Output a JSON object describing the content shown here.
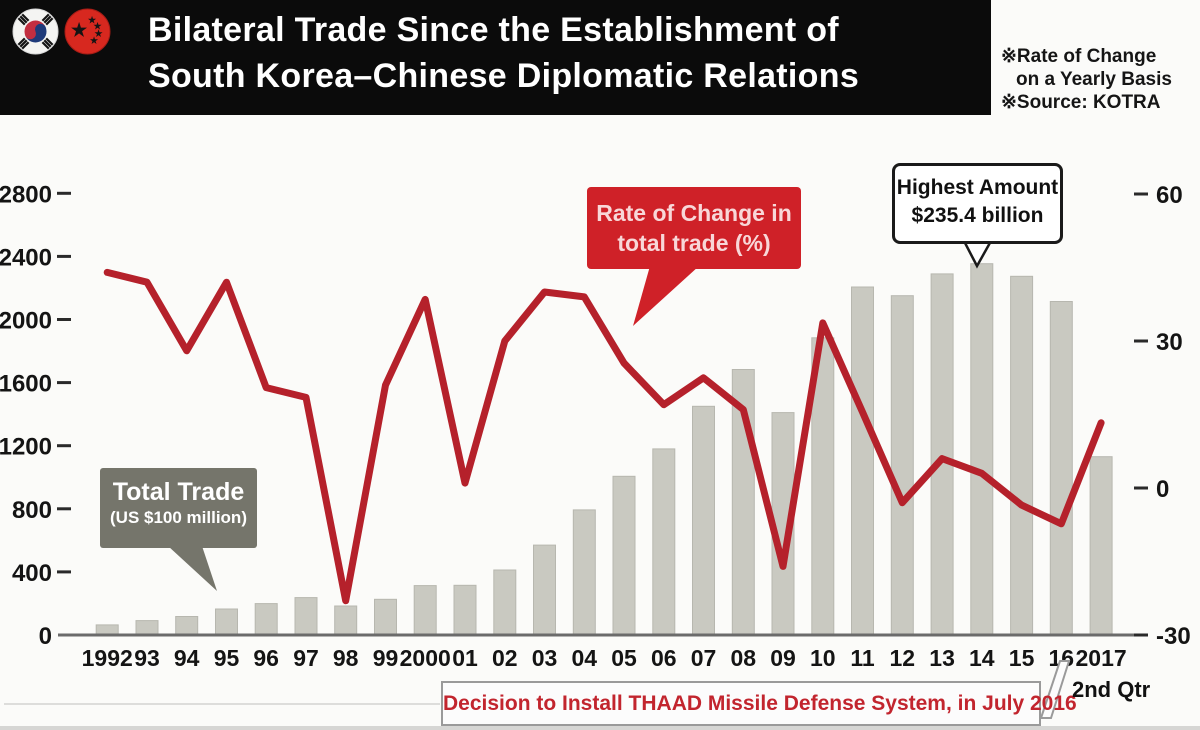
{
  "header": {
    "title_line1": "Bilateral Trade Since the Establishment of",
    "title_line2": "South Korea–Chinese Diplomatic Relations",
    "flags": {
      "left": "south-korea-flag",
      "right": "china-flag"
    }
  },
  "notes": {
    "line1": "※Rate of Change",
    "line2": "on a Yearly Basis",
    "line3": "※Source: KOTRA"
  },
  "callouts": {
    "total_trade": {
      "title": "Total Trade",
      "subtitle": "(US $100 million)"
    },
    "rate_of_change": {
      "line1": "Rate of Change in",
      "line2": "total trade (%)"
    },
    "highest_amount": {
      "line1": "Highest Amount",
      "line2": "$235.4 billion"
    },
    "thaad": "Decision to Install THAAD Missile Defense System, in July 2016",
    "second_quarter": "2nd Qtr"
  },
  "colors": {
    "header_bg": "#0b0b0b",
    "bar": "#c9c9c1",
    "bar_edge": "#b7b7af",
    "line": "#b5212b",
    "red_box": "#cf2128",
    "red_box_text": "#f8d7d8",
    "gray_box": "#75756b",
    "axis": "#6b6b6b",
    "tick_text": "#141414",
    "thaad_text": "#c2252e"
  },
  "chart_data": {
    "type": "bar+line",
    "title": "Bilateral Trade Since the Establishment of South Korea–Chinese Diplomatic Relations",
    "categories": [
      "1992",
      "93",
      "94",
      "95",
      "96",
      "97",
      "98",
      "99",
      "2000",
      "01",
      "02",
      "03",
      "04",
      "05",
      "06",
      "07",
      "08",
      "09",
      "10",
      "11",
      "12",
      "13",
      "14",
      "15",
      "16",
      "2017"
    ],
    "series": [
      {
        "name": "Total Trade",
        "unit": "US $100 million",
        "type": "bar",
        "axis": "left",
        "values": [
          64,
          91,
          117,
          165,
          199,
          237,
          184,
          226,
          313,
          315,
          412,
          570,
          793,
          1006,
          1180,
          1450,
          1683,
          1410,
          1884,
          2206,
          2151,
          2289,
          2354,
          2274,
          2114,
          1130
        ]
      },
      {
        "name": "Rate of Change in total trade",
        "unit": "%",
        "type": "line",
        "axis": "right",
        "values": [
          44,
          42,
          28,
          42,
          20.5,
          18.5,
          -23,
          21,
          38.5,
          1,
          30,
          40,
          39,
          25.5,
          17,
          22.5,
          16,
          -16,
          33.7,
          15.5,
          -3,
          6,
          3,
          -3.5,
          -7.3,
          13.3
        ]
      }
    ],
    "left_axis": {
      "ticks": [
        0,
        400,
        800,
        1200,
        1600,
        2000,
        2400,
        2800
      ],
      "range": [
        0,
        2960
      ]
    },
    "right_axis": {
      "ticks": [
        -30,
        0,
        30,
        60
      ],
      "range": [
        -30,
        63
      ]
    },
    "grid": false,
    "legend_position": "inline-callouts",
    "annotations": [
      "Highest Amount $235.4 billion (2014 bar)",
      "Decision to Install THAAD Missile Defense System, in July 2016",
      "2017 bar is 2nd Qtr figure"
    ]
  }
}
